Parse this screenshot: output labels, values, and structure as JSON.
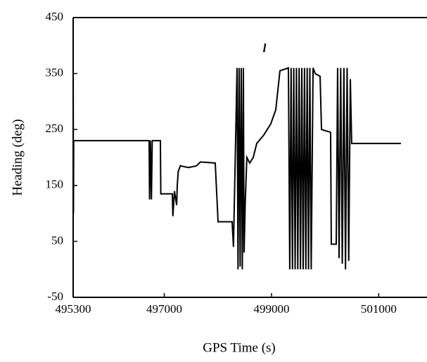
{
  "chart_data": {
    "type": "line",
    "ylabel": "Heading (deg)",
    "xlabel": "GPS Time (s)",
    "annotation": "l",
    "x": [
      495300,
      495305,
      495310,
      496717,
      496725,
      496740,
      496760,
      496775,
      496927,
      496935,
      497150,
      497160,
      497189,
      497230,
      497242,
      497260,
      497300,
      497450,
      497600,
      497675,
      497950,
      498003,
      498265,
      498290,
      498357,
      498375,
      498395,
      498415,
      498435,
      498455,
      498475,
      498488,
      498510,
      498540,
      498593,
      498659,
      498724,
      498855,
      498986,
      499079,
      499157,
      499315,
      499340,
      499365,
      499390,
      499415,
      499440,
      499465,
      499490,
      499515,
      499540,
      499565,
      499590,
      499615,
      499640,
      499665,
      499690,
      499715,
      499740,
      499775,
      499814,
      499906,
      499932,
      500102,
      500115,
      500207,
      500233,
      500260,
      500290,
      500320,
      500350,
      500380,
      500410,
      500440,
      500470,
      500495,
      501414
    ],
    "series": [
      {
        "color": "#000000",
        "values": [
          365,
          100,
          230,
          230,
          125,
          230,
          125,
          230,
          230,
          135,
          135,
          95,
          140,
          115,
          150,
          175,
          185,
          182,
          185,
          192,
          190,
          85,
          85,
          40,
          360,
          0,
          360,
          5,
          360,
          0,
          360,
          30,
          120,
          200,
          190,
          200,
          225,
          240,
          260,
          285,
          355,
          360,
          0,
          360,
          0,
          360,
          0,
          360,
          0,
          360,
          0,
          360,
          0,
          360,
          0,
          360,
          0,
          360,
          0,
          360,
          350,
          345,
          250,
          245,
          45,
          45,
          360,
          20,
          360,
          10,
          360,
          0,
          360,
          15,
          340,
          225,
          225
        ]
      }
    ],
    "xlim": [
      495300,
      501900
    ],
    "xticks": [
      495300,
      497000,
      499000,
      501000
    ],
    "ylim": [
      -50,
      450
    ],
    "yticks": [
      -50,
      50,
      150,
      250,
      350,
      450
    ]
  }
}
